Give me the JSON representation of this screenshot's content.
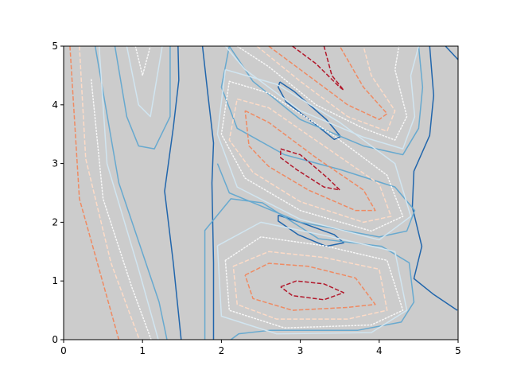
{
  "chart_data": {
    "type": "contour",
    "xlim": [
      0,
      5
    ],
    "ylim": [
      0,
      5
    ],
    "xticks": [
      0,
      1,
      2,
      3,
      4,
      5
    ],
    "yticks": [
      0,
      1,
      2,
      3,
      4,
      5
    ],
    "background": "#cccccc",
    "series": [
      {
        "color": "#2166ac",
        "linestyle": "solid",
        "x": [
          1.49,
          1.39,
          1.28,
          1.39,
          1.46,
          1.45
        ],
        "y": [
          0,
          1.31,
          2.53,
          3.61,
          4.42,
          5
        ]
      },
      {
        "color": "#2166ac",
        "linestyle": "solid",
        "x": [
          1.9,
          1.9,
          1.88,
          1.9,
          1.83,
          1.76
        ],
        "y": [
          0,
          1.31,
          2.67,
          3.35,
          4.16,
          5
        ]
      },
      {
        "color": "#2166ac",
        "linestyle": "solid",
        "x": [
          2.74,
          2.92,
          3.33,
          3.51,
          3.43,
          3.17,
          2.82,
          2.72,
          2.74
        ],
        "y": [
          4.39,
          4.23,
          3.75,
          3.46,
          3.41,
          3.69,
          4.05,
          4.3,
          4.39
        ]
      },
      {
        "color": "#2166ac",
        "linestyle": "solid",
        "x": [
          2.72,
          3.02,
          3.43,
          3.55,
          3.33,
          2.97,
          2.72,
          2.72
        ],
        "y": [
          2.12,
          1.99,
          1.79,
          1.65,
          1.59,
          1.79,
          2.02,
          2.12
        ]
      },
      {
        "color": "#2166ac",
        "linestyle": "solid",
        "x": [
          4.64,
          4.69,
          4.64,
          4.44,
          4.42,
          4.54,
          4.44,
          4.69,
          4.99
        ],
        "y": [
          5,
          4.16,
          3.48,
          2.87,
          2.26,
          1.59,
          1.04,
          0.77,
          0.5
        ]
      },
      {
        "color": "#2166ac",
        "linestyle": "solid",
        "x": [
          4.84,
          5.0
        ],
        "y": [
          5,
          4.77
        ]
      },
      {
        "color": "#67a9cf",
        "linestyle": "solid",
        "x": [
          0.4,
          0.7,
          1.21,
          1.31
        ],
        "y": [
          5,
          2.67,
          0.64,
          0
        ]
      },
      {
        "color": "#67a9cf",
        "linestyle": "solid",
        "x": [
          0.65,
          0.8,
          0.95,
          1.15,
          1.35,
          1.35
        ],
        "y": [
          5,
          3.8,
          3.3,
          3.25,
          3.8,
          5
        ]
      },
      {
        "color": "#67a9cf",
        "linestyle": "solid",
        "x": [
          1.79,
          1.79,
          2.12,
          2.52,
          3.23,
          4.03,
          4.38,
          4.44,
          4.28,
          3.73,
          2.62,
          2.22,
          2.12
        ],
        "y": [
          0,
          1.86,
          2.4,
          2.33,
          1.72,
          1.59,
          1.31,
          0.64,
          0.3,
          0.16,
          0.16,
          0.1,
          0
        ]
      },
      {
        "color": "#67a9cf",
        "linestyle": "solid",
        "x": [
          2.1,
          2.0,
          2.2,
          2.8,
          3.5,
          4.2,
          4.45,
          4.35,
          4.0,
          3.0,
          2.1,
          1.95
        ],
        "y": [
          5,
          4.3,
          3.6,
          3.15,
          2.9,
          2.6,
          2.2,
          1.85,
          1.75,
          2.0,
          2.5,
          3.0
        ]
      },
      {
        "color": "#67a9cf",
        "linestyle": "solid",
        "x": [
          4.5,
          4.55,
          4.5,
          4.3,
          3.8,
          3.0,
          2.4,
          2.1
        ],
        "y": [
          5,
          4.3,
          3.6,
          3.15,
          3.3,
          3.75,
          4.4,
          5
        ]
      },
      {
        "color": "#d1e5f0",
        "linestyle": "solid",
        "x": [
          0.45,
          0.55,
          0.95,
          1.2
        ],
        "y": [
          5,
          3,
          1.2,
          0
        ]
      },
      {
        "color": "#d1e5f0",
        "linestyle": "solid",
        "x": [
          0.8,
          0.95,
          1.1,
          1.25
        ],
        "y": [
          5,
          4.0,
          3.8,
          5
        ]
      },
      {
        "color": "#d1e5f0",
        "linestyle": "solid",
        "x": [
          1.95,
          2.5,
          3.4,
          4.2,
          4.35,
          3.9,
          2.7,
          2.0,
          1.95
        ],
        "y": [
          1.6,
          2.0,
          1.75,
          1.5,
          0.5,
          0.12,
          0.1,
          0.4,
          1.6
        ]
      },
      {
        "color": "#d1e5f0",
        "linestyle": "solid",
        "x": [
          2.05,
          2.7,
          3.5,
          4.2,
          4.4,
          4.0,
          3.0,
          2.2,
          1.95,
          2.05
        ],
        "y": [
          4.6,
          4.35,
          3.7,
          3.0,
          2.1,
          1.7,
          2.05,
          2.6,
          3.5,
          4.6
        ]
      },
      {
        "color": "#d1e5f0",
        "linestyle": "solid",
        "x": [
          2.05,
          2.3,
          3.0,
          3.8,
          4.3,
          4.45,
          4.4,
          4.5
        ],
        "y": [
          5,
          4.6,
          3.9,
          3.45,
          3.25,
          3.8,
          4.5,
          5
        ]
      },
      {
        "color": "#f7f7f7",
        "linestyle": "dotted",
        "x": [
          0.35,
          0.5,
          0.86,
          1.11
        ],
        "y": [
          4.43,
          2.4,
          0.91,
          0
        ]
      },
      {
        "color": "#f7f7f7",
        "linestyle": "dotted",
        "x": [
          0.91,
          1.0,
          1.1
        ],
        "y": [
          5,
          4.5,
          5
        ]
      },
      {
        "color": "#f7f7f7",
        "linestyle": "dotted",
        "x": [
          2.05,
          2.5,
          3.3,
          4.1,
          4.3,
          3.9,
          2.8,
          2.1,
          2.05
        ],
        "y": [
          1.35,
          1.75,
          1.6,
          1.35,
          0.5,
          0.25,
          0.2,
          0.5,
          1.35
        ]
      },
      {
        "color": "#f7f7f7",
        "linestyle": "dotted",
        "x": [
          2.1,
          2.6,
          3.4,
          4.1,
          4.3,
          3.9,
          3.0,
          2.3,
          2.0,
          2.1
        ],
        "y": [
          4.4,
          4.2,
          3.5,
          2.8,
          2.1,
          1.85,
          2.2,
          2.75,
          3.5,
          4.4
        ]
      },
      {
        "color": "#f7f7f7",
        "linestyle": "dotted",
        "x": [
          2.2,
          2.6,
          3.2,
          3.8,
          4.2,
          4.35,
          4.2,
          4.25
        ],
        "y": [
          5,
          4.65,
          4.0,
          3.6,
          3.4,
          3.8,
          4.6,
          5
        ]
      },
      {
        "color": "#fddbc7",
        "linestyle": "dashed",
        "x": [
          0.2,
          0.28,
          0.6,
          0.96
        ],
        "y": [
          5,
          3.08,
          1.31,
          0
        ]
      },
      {
        "color": "#fddbc7",
        "linestyle": "dashed",
        "x": [
          2.15,
          2.6,
          3.3,
          4.0,
          4.1,
          3.6,
          2.7,
          2.2,
          2.15
        ],
        "y": [
          1.25,
          1.5,
          1.4,
          1.2,
          0.5,
          0.35,
          0.35,
          0.6,
          1.25
        ]
      },
      {
        "color": "#fddbc7",
        "linestyle": "dashed",
        "x": [
          2.2,
          2.6,
          3.3,
          4.0,
          4.15,
          3.8,
          3.0,
          2.4,
          2.1,
          2.2
        ],
        "y": [
          4.1,
          3.95,
          3.3,
          2.65,
          2.1,
          2.0,
          2.35,
          2.85,
          3.4,
          4.1
        ]
      },
      {
        "color": "#fddbc7",
        "linestyle": "dashed",
        "x": [
          2.45,
          3.0,
          3.6,
          4.1,
          4.2,
          3.9,
          3.8
        ],
        "y": [
          5,
          4.4,
          3.8,
          3.55,
          3.9,
          4.5,
          5
        ]
      },
      {
        "color": "#ef8a62",
        "linestyle": "dashed",
        "x": [
          0.08,
          0.2,
          0.7
        ],
        "y": [
          5,
          2.4,
          0
        ]
      },
      {
        "color": "#ef8a62",
        "linestyle": "dashed",
        "x": [
          2.3,
          2.6,
          3.1,
          3.7,
          3.95,
          3.6,
          2.9,
          2.4,
          2.3
        ],
        "y": [
          1.1,
          1.3,
          1.25,
          1.05,
          0.6,
          0.55,
          0.5,
          0.7,
          1.1
        ]
      },
      {
        "color": "#ef8a62",
        "linestyle": "dashed",
        "x": [
          2.3,
          2.6,
          3.2,
          3.8,
          3.95,
          3.7,
          3.1,
          2.6,
          2.35,
          2.3
        ],
        "y": [
          3.9,
          3.7,
          3.1,
          2.55,
          2.2,
          2.2,
          2.55,
          2.95,
          3.3,
          3.9
        ]
      },
      {
        "color": "#ef8a62",
        "linestyle": "dashed",
        "x": [
          2.6,
          3.1,
          3.6,
          4.0,
          4.1,
          3.8,
          3.5
        ],
        "y": [
          5,
          4.5,
          4.0,
          3.75,
          3.85,
          4.3,
          5
        ]
      },
      {
        "color": "#b2182b",
        "linestyle": "dashed",
        "x": [
          2.75,
          2.95,
          3.3,
          3.55,
          3.3,
          2.9,
          2.75
        ],
        "y": [
          0.9,
          1.0,
          0.95,
          0.8,
          0.68,
          0.75,
          0.9
        ]
      },
      {
        "color": "#b2182b",
        "linestyle": "dashed",
        "x": [
          2.75,
          3.0,
          3.35,
          3.5,
          3.3,
          2.95,
          2.75,
          2.75
        ],
        "y": [
          3.25,
          3.15,
          2.75,
          2.55,
          2.6,
          2.9,
          3.1,
          3.25
        ]
      },
      {
        "color": "#b2182b",
        "linestyle": "dashed",
        "x": [
          2.9,
          3.2,
          3.5,
          3.55,
          3.4,
          3.3
        ],
        "y": [
          5,
          4.7,
          4.3,
          4.25,
          4.5,
          5
        ]
      }
    ]
  }
}
